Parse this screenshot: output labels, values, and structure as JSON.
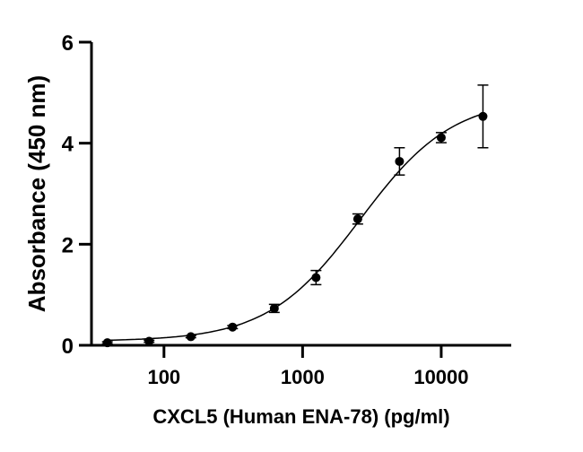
{
  "chart_data": {
    "type": "scatter",
    "title": "",
    "xlabel": "CXCL5 (Human ENA-78) (pg/ml)",
    "ylabel": "Absorbance (450 nm)",
    "xscale": "log",
    "xlim": [
      30,
      32000
    ],
    "ylim": [
      0,
      6
    ],
    "xticks": [
      100,
      1000,
      10000
    ],
    "xtick_labels": [
      "100",
      "1000",
      "10000"
    ],
    "yticks": [
      0,
      2,
      4,
      6
    ],
    "ytick_labels": [
      "0",
      "2",
      "4",
      "6"
    ],
    "grid": false,
    "legend": "none",
    "series": [
      {
        "x": [
          39.06,
          78.13,
          156.25,
          312.5,
          625,
          1250,
          2500,
          5000,
          10000,
          20000
        ],
        "y": [
          0.05,
          0.08,
          0.17,
          0.36,
          0.73,
          1.34,
          2.5,
          3.64,
          4.11,
          4.53
        ],
        "yerr": [
          0.02,
          0.02,
          0.02,
          0.03,
          0.08,
          0.14,
          0.1,
          0.27,
          0.1,
          0.62
        ],
        "color": "#000000"
      }
    ],
    "fit": {
      "model": "4PL",
      "bottom": 0.08,
      "top": 4.9,
      "ec50": 2600,
      "hill": 1.3,
      "color": "#000000"
    }
  }
}
